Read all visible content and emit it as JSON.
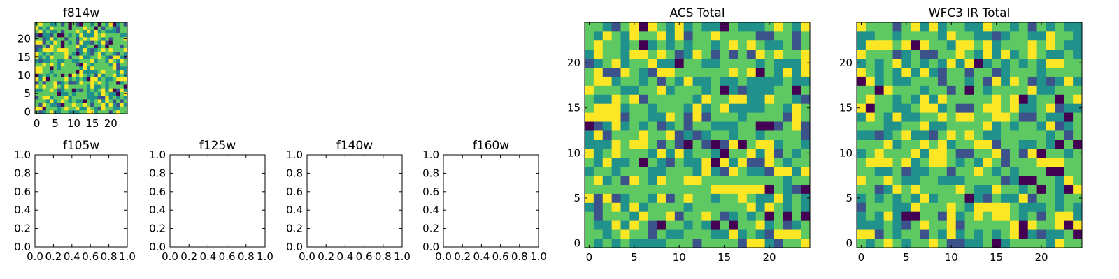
{
  "figure": {
    "background": "#ffffff"
  },
  "colormap": [
    "#440154",
    "#3b528b",
    "#21918c",
    "#5ec962",
    "#fde725"
  ],
  "chart_data": [
    {
      "type": "heatmap",
      "title": "f814w",
      "grid_size": 25,
      "xlim": [
        -0.5,
        24.5
      ],
      "ylim": [
        -0.5,
        24.5
      ],
      "xticks": [
        0,
        5,
        10,
        15,
        20
      ],
      "yticks": [
        0,
        5,
        10,
        15,
        20
      ],
      "seed": 814
    },
    {
      "type": "empty",
      "title": "f105w",
      "xlim": [
        0,
        1
      ],
      "ylim": [
        0,
        1
      ],
      "xticks": [
        "0.0",
        "0.2",
        "0.4",
        "0.6",
        "0.8",
        "1.0"
      ],
      "yticks": [
        "0.0",
        "0.2",
        "0.4",
        "0.6",
        "0.8",
        "1.0"
      ]
    },
    {
      "type": "empty",
      "title": "f125w",
      "xlim": [
        0,
        1
      ],
      "ylim": [
        0,
        1
      ],
      "xticks": [
        "0.0",
        "0.2",
        "0.4",
        "0.6",
        "0.8",
        "1.0"
      ],
      "yticks": [
        "0.0",
        "0.2",
        "0.4",
        "0.6",
        "0.8",
        "1.0"
      ]
    },
    {
      "type": "empty",
      "title": "f140w",
      "xlim": [
        0,
        1
      ],
      "ylim": [
        0,
        1
      ],
      "xticks": [
        "0.0",
        "0.2",
        "0.4",
        "0.6",
        "0.8",
        "1.0"
      ],
      "yticks": [
        "0.0",
        "0.2",
        "0.4",
        "0.6",
        "0.8",
        "1.0"
      ]
    },
    {
      "type": "empty",
      "title": "f160w",
      "xlim": [
        0,
        1
      ],
      "ylim": [
        0,
        1
      ],
      "xticks": [
        "0.0",
        "0.2",
        "0.4",
        "0.6",
        "0.8",
        "1.0"
      ],
      "yticks": [
        "0.0",
        "0.2",
        "0.4",
        "0.6",
        "0.8",
        "1.0"
      ]
    },
    {
      "type": "heatmap",
      "title": "ACS Total",
      "grid_size": 25,
      "xlim": [
        -0.5,
        24.5
      ],
      "ylim": [
        -0.5,
        24.5
      ],
      "xticks": [
        0,
        5,
        10,
        15,
        20
      ],
      "yticks": [
        0,
        5,
        10,
        15,
        20
      ],
      "seed": 1234
    },
    {
      "type": "heatmap",
      "title": "WFC3 IR Total",
      "grid_size": 25,
      "xlim": [
        -0.5,
        24.5
      ],
      "ylim": [
        -0.5,
        24.5
      ],
      "xticks": [
        0,
        5,
        10,
        15,
        20
      ],
      "yticks": [
        0,
        5,
        10,
        15,
        20
      ],
      "seed": 5678
    }
  ]
}
